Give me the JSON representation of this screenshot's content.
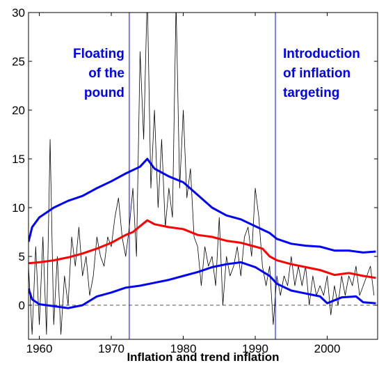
{
  "chart_data": {
    "type": "line",
    "xlabel": "Inflation and trend inflation",
    "xlim": [
      1958.5,
      2007
    ],
    "ylim": [
      -3.5,
      30
    ],
    "xticks": [
      1960,
      1970,
      1980,
      1990,
      2000
    ],
    "yticks": [
      0,
      5,
      10,
      15,
      20,
      25,
      30
    ],
    "vlines": [
      1972.5,
      1992.8
    ],
    "vline_color": "#0000ff",
    "hline": 0,
    "annotations": [
      [
        "Floating",
        "of the",
        "pound"
      ],
      [
        "Introduction",
        "of inflation",
        "targeting"
      ]
    ],
    "annotation_color": "#0000ff",
    "series": [
      {
        "color": "#000000",
        "width": 0.8,
        "x": [
          1958.5,
          1959,
          1959.5,
          1960,
          1960.5,
          1961,
          1961.5,
          1962,
          1962.5,
          1963,
          1963.5,
          1964,
          1964.5,
          1965,
          1965.5,
          1966,
          1966.5,
          1967,
          1967.5,
          1968,
          1968.5,
          1969,
          1969.5,
          1970,
          1970.5,
          1971,
          1971.5,
          1972,
          1972.5,
          1973,
          1973.5,
          1974,
          1974.5,
          1975,
          1975.5,
          1976,
          1976.5,
          1977,
          1977.5,
          1978,
          1978.5,
          1979,
          1979.5,
          1980,
          1980.5,
          1981,
          1981.5,
          1982,
          1982.5,
          1983,
          1983.5,
          1984,
          1984.5,
          1985,
          1985.5,
          1986,
          1986.5,
          1987,
          1987.5,
          1988,
          1988.5,
          1989,
          1989.5,
          1990,
          1990.5,
          1991,
          1991.5,
          1992,
          1992.5,
          1993,
          1993.5,
          1994,
          1994.5,
          1995,
          1995.5,
          1996,
          1996.5,
          1997,
          1997.5,
          1998,
          1998.5,
          1999,
          1999.5,
          2000,
          2000.5,
          2001,
          2001.5,
          2002,
          2002.5,
          2003,
          2003.5,
          2004,
          2004.5,
          2005,
          2005.5,
          2006,
          2006.5
        ],
        "values": [
          4,
          -3,
          6,
          -2,
          7,
          -3,
          17,
          -2,
          5,
          -3,
          3,
          0,
          7,
          4,
          8,
          3,
          5,
          1,
          3,
          7,
          5,
          4,
          7,
          6,
          9,
          11,
          7,
          5,
          8,
          12,
          5,
          26,
          17,
          32,
          12,
          20,
          10,
          17,
          8,
          12,
          9,
          31,
          12,
          20,
          11,
          14,
          7,
          6,
          2,
          6,
          4,
          5,
          2,
          9,
          0,
          5,
          3,
          4,
          6,
          3,
          7,
          8,
          5,
          12,
          9,
          4,
          2,
          4,
          -2,
          3,
          1,
          3,
          2,
          5,
          2,
          4,
          2,
          4,
          0,
          3,
          1,
          2,
          1,
          3,
          -1,
          2,
          0,
          3,
          1,
          3,
          2,
          4,
          1,
          2,
          3,
          4,
          1
        ]
      },
      {
        "color": "#ff0000",
        "width": 3,
        "x": [
          1958.5,
          1960,
          1962,
          1964,
          1966,
          1968,
          1970,
          1972,
          1973,
          1974,
          1975,
          1976,
          1978,
          1980,
          1982,
          1984,
          1986,
          1988,
          1990,
          1991,
          1992,
          1993,
          1995,
          1997,
          1999,
          2001,
          2003,
          2005,
          2006.75
        ],
        "values": [
          4.3,
          4.4,
          4.6,
          4.9,
          5.3,
          5.8,
          6.4,
          7.2,
          7.5,
          8.1,
          8.7,
          8.3,
          8.0,
          7.8,
          7.2,
          7.0,
          6.6,
          6.4,
          6.0,
          5.8,
          5.0,
          4.6,
          4.2,
          3.9,
          3.6,
          3.1,
          3.3,
          3.0,
          2.8
        ]
      },
      {
        "color": "#0000ff",
        "width": 3,
        "x": [
          1958.5,
          1959,
          1960,
          1962,
          1964,
          1966,
          1968,
          1970,
          1972,
          1974,
          1975,
          1976,
          1978,
          1980,
          1982,
          1984,
          1986,
          1988,
          1990,
          1992,
          1993,
          1995,
          1997,
          1999,
          2001,
          2003,
          2005,
          2006.75
        ],
        "values": [
          6.5,
          8,
          9,
          10,
          10.7,
          11.2,
          12,
          12.7,
          13.5,
          14.2,
          15.0,
          14,
          13.2,
          12.6,
          11.3,
          10,
          9.2,
          8.8,
          8.1,
          7.4,
          6.8,
          6.3,
          6.1,
          6.0,
          5.6,
          5.6,
          5.4,
          5.5
        ]
      },
      {
        "color": "#0000ff",
        "width": 3,
        "x": [
          1958.5,
          1959,
          1960,
          1962,
          1964,
          1966,
          1968,
          1970,
          1972,
          1974,
          1976,
          1978,
          1980,
          1982,
          1984,
          1986,
          1988,
          1990,
          1992,
          1993,
          1995,
          1997,
          1999,
          2000,
          2002,
          2004,
          2005,
          2006.75
        ],
        "values": [
          1.7,
          0.6,
          0.1,
          -0.1,
          -0.3,
          0,
          0.9,
          1.3,
          1.8,
          2.0,
          2.3,
          2.6,
          3.0,
          3.4,
          3.9,
          4.2,
          4.4,
          3.9,
          3.0,
          2.2,
          1.5,
          1.2,
          0.9,
          0.2,
          0.8,
          0.9,
          0.3,
          0.2
        ]
      }
    ]
  }
}
